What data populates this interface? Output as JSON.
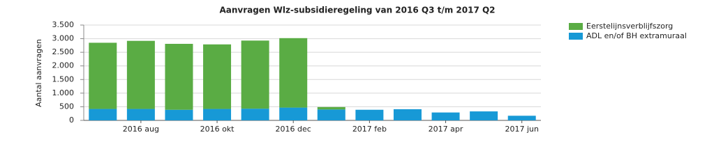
{
  "chart_data": {
    "type": "stacked_bar",
    "title": "Aanvragen Wlz-subsidieregeling van 2016 Q3 t/m 2017 Q2",
    "y_label": "Aantal aanvragen",
    "categories": [
      null,
      "2016 aug",
      null,
      "2016 okt",
      null,
      "2016 dec",
      null,
      "2017 feb",
      null,
      "2017 apr",
      null,
      "2017 jun"
    ],
    "series": [
      {
        "name": "Eerstelijnsverblijfszorg",
        "color": "#5aac44",
        "values": [
          2430,
          2500,
          2420,
          2370,
          2500,
          2550,
          90,
          0,
          0,
          0,
          0,
          0
        ]
      },
      {
        "name": "ADL en/of BH extramuraal",
        "color": "#1799d6",
        "values": [
          420,
          420,
          390,
          420,
          430,
          470,
          400,
          390,
          410,
          290,
          330,
          170
        ]
      }
    ],
    "ylim": [
      0,
      3500
    ],
    "yticks": [
      0,
      500,
      {
        "value": 1000,
        "label": "1.000"
      },
      {
        "value": 1500,
        "label": "1.500"
      },
      {
        "value": 2000,
        "label": "2.000"
      },
      {
        "value": 2500,
        "label": "2.500"
      },
      {
        "value": 3000,
        "label": "3.000"
      },
      {
        "value": 3500,
        "label": "3.500"
      }
    ],
    "grid": true
  }
}
